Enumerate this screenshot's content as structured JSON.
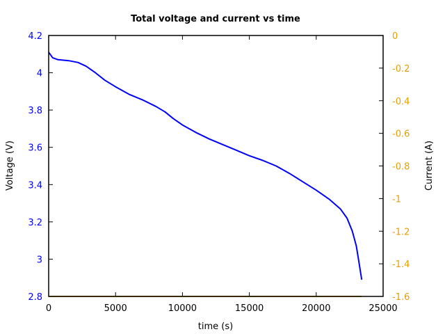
{
  "chart_data": {
    "type": "line",
    "title": "Total voltage and current vs time",
    "xlabel": "time (s)",
    "ylabel": "Voltage (V)",
    "y2label": "Current (A)",
    "xlim": [
      0,
      25000
    ],
    "ylim": [
      2.8,
      4.2
    ],
    "y2lim": [
      -1.6,
      0
    ],
    "grid": false,
    "legend": "none",
    "x_ticks": [
      "0",
      "5000",
      "10000",
      "15000",
      "20000",
      "25000"
    ],
    "y_ticks": [
      "2.8",
      "3",
      "3.2",
      "3.4",
      "3.6",
      "3.8",
      "4",
      "4.2"
    ],
    "y2_ticks": [
      "-1.6",
      "-1.4",
      "-1.2",
      "-1",
      "-0.8",
      "-0.6",
      "-0.4",
      "-0.2",
      "0"
    ],
    "colors": {
      "voltage": "#0000ff",
      "current": "#e69f00",
      "axes": "#000000"
    },
    "series": [
      {
        "name": "Voltage (V)",
        "axis": "left",
        "x": [
          0,
          300,
          700,
          1500,
          2200,
          2800,
          3500,
          4200,
          5000,
          6000,
          7000,
          8000,
          8700,
          9300,
          10000,
          11000,
          12000,
          13000,
          14000,
          15000,
          16000,
          17000,
          18000,
          19000,
          20000,
          21000,
          21800,
          22300,
          22700,
          23000,
          23200,
          23400
        ],
        "values": [
          4.11,
          4.08,
          4.07,
          4.065,
          4.055,
          4.035,
          4.0,
          3.96,
          3.925,
          3.885,
          3.855,
          3.82,
          3.79,
          3.755,
          3.72,
          3.68,
          3.645,
          3.615,
          3.585,
          3.555,
          3.53,
          3.5,
          3.46,
          3.415,
          3.37,
          3.32,
          3.27,
          3.22,
          3.15,
          3.07,
          2.98,
          2.89
        ]
      },
      {
        "name": "Current (A)",
        "axis": "right",
        "x": [
          0,
          23400
        ],
        "values": [
          -1.6,
          -1.6
        ]
      }
    ]
  }
}
